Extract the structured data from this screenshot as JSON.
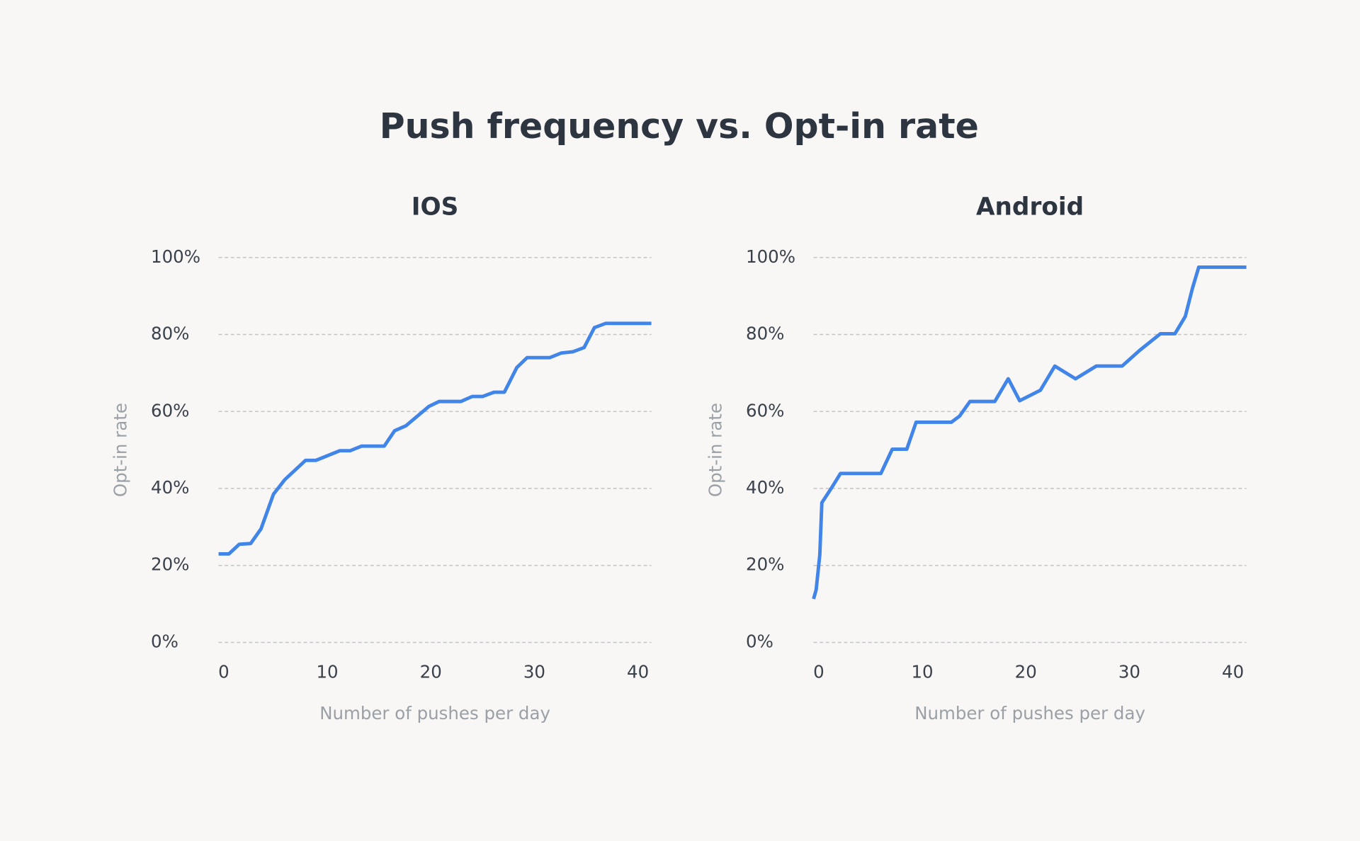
{
  "title": "Push frequency vs. Opt-in rate",
  "chart_data": [
    {
      "type": "line",
      "title": "IOS",
      "xlabel": "Number of pushes per day",
      "ylabel": "Opt-in rate",
      "x": [
        -0.5,
        0.5,
        1.5,
        2.6,
        3.6,
        4.8,
        5.9,
        7.9,
        8.9,
        11.2,
        12.2,
        13.3,
        15.5,
        16.5,
        17.6,
        19.8,
        20.8,
        22.9,
        24,
        25,
        26.1,
        27.1,
        28.3,
        29.3,
        31.5,
        32.6,
        33.7,
        34.8,
        35.8,
        36.9,
        41.3
      ],
      "values": [
        23,
        23,
        25.5,
        25.7,
        29.5,
        38.5,
        42.3,
        47.3,
        47.3,
        49.8,
        49.8,
        51,
        51,
        55,
        56.3,
        61.3,
        62.6,
        62.6,
        63.9,
        63.9,
        65,
        65,
        71.4,
        74,
        74,
        75.2,
        75.5,
        76.6,
        81.8,
        82.9,
        82.9
      ],
      "color": "#4285e8",
      "xlim": [
        -0.5,
        41.3
      ],
      "xticks": [
        0,
        10,
        20,
        30,
        40
      ],
      "ylim": [
        0,
        100
      ],
      "yticks": [
        {
          "value": 0,
          "label": "0%"
        },
        {
          "value": 20,
          "label": "20%"
        },
        {
          "value": 40,
          "label": "40%"
        },
        {
          "value": 60,
          "label": "60%"
        },
        {
          "value": 80,
          "label": "80%"
        },
        {
          "value": 100,
          "label": "100%"
        }
      ],
      "grid": true
    },
    {
      "type": "line",
      "title": "Android",
      "xlabel": "Number of pushes per day",
      "ylabel": "Opt-in rate",
      "x": [
        -0.5,
        -0.25,
        0.1,
        0.3,
        1.2,
        2.1,
        6,
        7.1,
        8.5,
        9.4,
        12.8,
        13.6,
        14.6,
        17,
        18.3,
        19.4,
        21.4,
        22.8,
        24.8,
        26.8,
        29.3,
        31,
        33,
        34.4,
        35.4,
        36.1,
        36.7,
        41.3
      ],
      "values": [
        11.3,
        13.7,
        22.7,
        36.3,
        40,
        43.9,
        43.9,
        50.2,
        50.2,
        57.2,
        57.2,
        58.8,
        62.6,
        62.6,
        68.5,
        62.8,
        65.5,
        71.8,
        68.5,
        71.8,
        71.8,
        75.9,
        80.2,
        80.2,
        84.7,
        92.1,
        97.5,
        97.5
      ],
      "color": "#4285e8",
      "xlim": [
        -0.5,
        41.3
      ],
      "xticks": [
        0,
        10,
        20,
        30,
        40
      ],
      "ylim": [
        0,
        100
      ],
      "yticks": [
        {
          "value": 0,
          "label": "0%"
        },
        {
          "value": 20,
          "label": "20%"
        },
        {
          "value": 40,
          "label": "40%"
        },
        {
          "value": 60,
          "label": "60%"
        },
        {
          "value": 80,
          "label": "80%"
        },
        {
          "value": 100,
          "label": "100%"
        }
      ],
      "grid": true
    }
  ]
}
